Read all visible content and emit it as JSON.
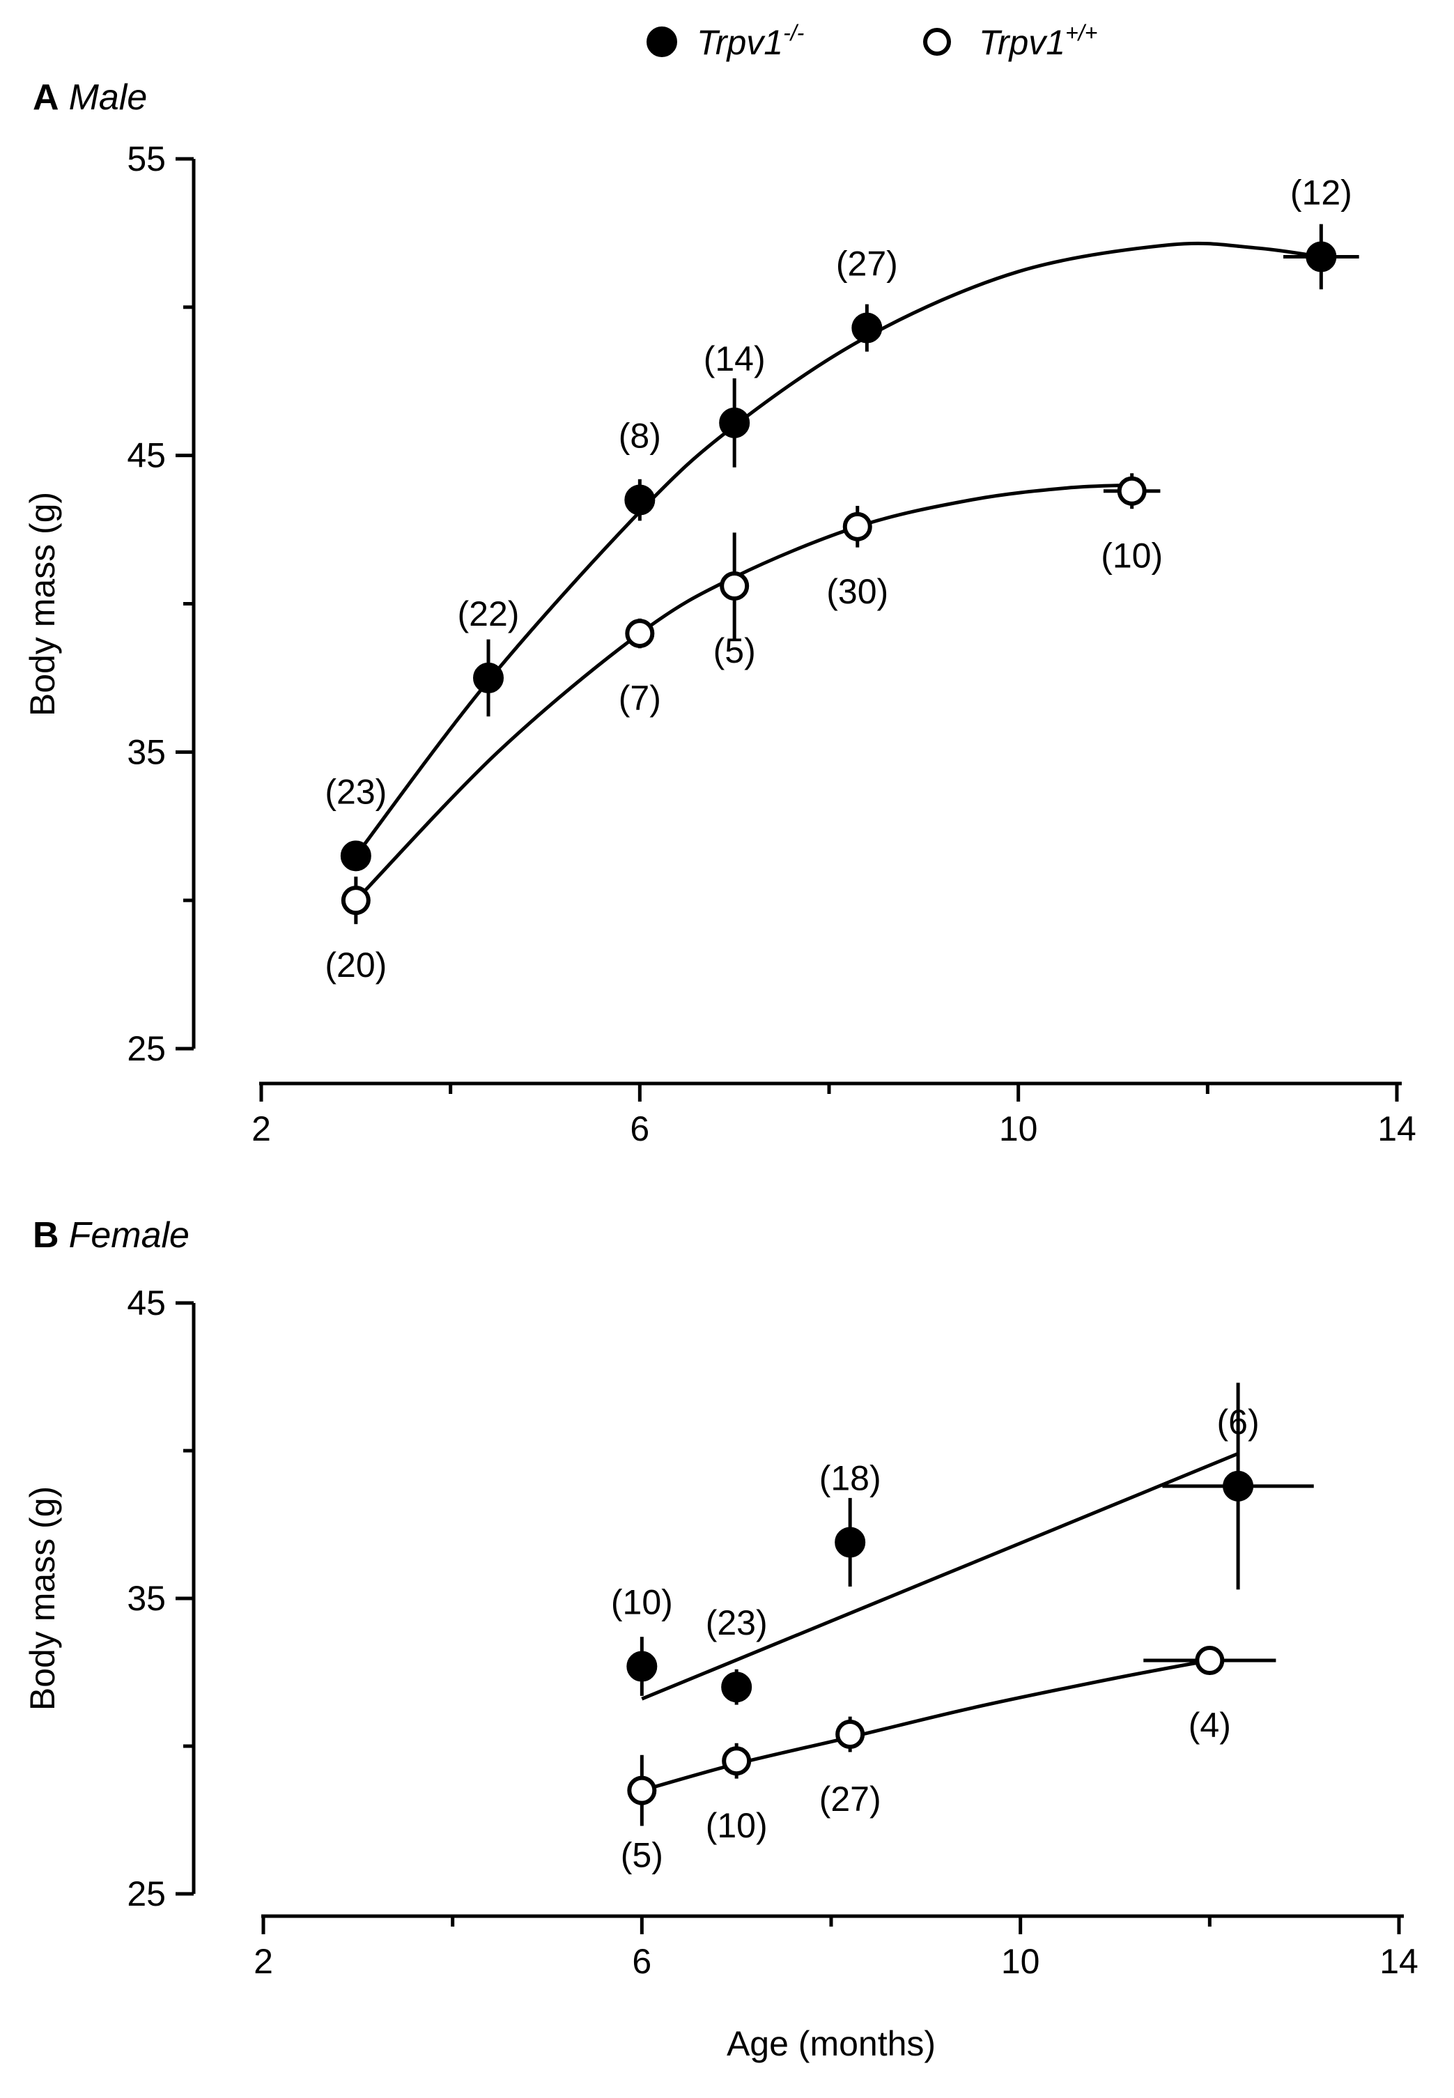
{
  "legend": {
    "entries": [
      {
        "name": "Trpv1",
        "sup": "-/-",
        "marker": "filled"
      },
      {
        "name": "Trpv1",
        "sup": "+/+",
        "marker": "open"
      }
    ]
  },
  "chart_data": [
    {
      "type": "scatter",
      "panel": {
        "letter": "A",
        "label": "Male"
      },
      "ylabel": "Body mass (g)",
      "xlabel": "",
      "xlim": [
        2,
        14
      ],
      "ylim": [
        25,
        55
      ],
      "xticks": [
        2,
        6,
        10,
        14
      ],
      "yticks": [
        25,
        35,
        45,
        55
      ],
      "series": [
        {
          "name": "Trpv1-/-",
          "marker": "filled",
          "points": [
            {
              "x": 3.0,
              "y": 31.5,
              "yerr": 0.5,
              "n": "(23)",
              "label_pos": "above"
            },
            {
              "x": 4.4,
              "y": 37.5,
              "yerr": 1.3,
              "n": "(22)",
              "label_pos": "above"
            },
            {
              "x": 6.0,
              "y": 43.5,
              "yerr": 0.7,
              "n": "(8)",
              "label_pos": "above"
            },
            {
              "x": 7.0,
              "y": 46.1,
              "yerr": 1.5,
              "n": "(14)",
              "label_pos": "above"
            },
            {
              "x": 8.4,
              "y": 49.3,
              "yerr": 0.8,
              "n": "(27)",
              "label_pos": "above"
            },
            {
              "x": 13.2,
              "y": 51.7,
              "yerr": 1.1,
              "xerr": 0.4,
              "n": "(12)",
              "label_pos": "above"
            }
          ],
          "fit": [
            [
              3.0,
              31.5
            ],
            [
              4.4,
              37.4
            ],
            [
              6.0,
              43.1
            ],
            [
              7.0,
              46.0
            ],
            [
              8.4,
              49.0
            ],
            [
              10.0,
              51.2
            ],
            [
              11.6,
              52.1
            ],
            [
              12.5,
              52.0
            ],
            [
              13.2,
              51.7
            ]
          ]
        },
        {
          "name": "Trpv1+/+",
          "marker": "open",
          "points": [
            {
              "x": 3.0,
              "y": 30.0,
              "yerr": 0.8,
              "n": "(20)",
              "label_pos": "below"
            },
            {
              "x": 6.0,
              "y": 39.0,
              "yerr": 0.5,
              "n": "(7)",
              "label_pos": "below"
            },
            {
              "x": 7.0,
              "y": 40.6,
              "yerr": 1.8,
              "n": "(5)",
              "label_pos": "below"
            },
            {
              "x": 8.3,
              "y": 42.6,
              "yerr": 0.7,
              "n": "(30)",
              "label_pos": "below"
            },
            {
              "x": 11.2,
              "y": 43.8,
              "yerr": 0.6,
              "xerr": 0.3,
              "n": "(10)",
              "label_pos": "below"
            }
          ],
          "fit": [
            [
              3.0,
              30.0
            ],
            [
              4.5,
              35.0
            ],
            [
              6.0,
              39.0
            ],
            [
              7.0,
              40.9
            ],
            [
              8.3,
              42.6
            ],
            [
              9.5,
              43.5
            ],
            [
              10.5,
              43.9
            ],
            [
              11.2,
              44.0
            ]
          ]
        }
      ]
    },
    {
      "type": "scatter",
      "panel": {
        "letter": "B",
        "label": "Female"
      },
      "ylabel": "Body mass (g)",
      "xlabel": "Age (months)",
      "xlim": [
        2,
        14
      ],
      "ylim": [
        25,
        45
      ],
      "xticks": [
        2,
        6,
        10,
        14
      ],
      "yticks": [
        25,
        35,
        45
      ],
      "series": [
        {
          "name": "Trpv1-/-",
          "marker": "filled",
          "points": [
            {
              "x": 6.0,
              "y": 32.7,
              "yerr": 1.0,
              "n": "(10)",
              "label_pos": "above"
            },
            {
              "x": 7.0,
              "y": 32.0,
              "yerr": 0.6,
              "n": "(23)",
              "label_pos": "above"
            },
            {
              "x": 8.2,
              "y": 36.9,
              "yerr": 1.5,
              "n": "(18)",
              "label_pos": "above"
            },
            {
              "x": 12.3,
              "y": 38.8,
              "yerr": 3.5,
              "xerr": 0.8,
              "n": "(6)",
              "label_pos": "above"
            }
          ],
          "fit": [
            [
              6.0,
              31.6
            ],
            [
              12.3,
              39.9
            ]
          ]
        },
        {
          "name": "Trpv1+/+",
          "marker": "open",
          "points": [
            {
              "x": 6.0,
              "y": 28.5,
              "yerr": 1.2,
              "n": "(5)",
              "label_pos": "below"
            },
            {
              "x": 7.0,
              "y": 29.5,
              "yerr": 0.6,
              "n": "(10)",
              "label_pos": "below"
            },
            {
              "x": 8.2,
              "y": 30.4,
              "yerr": 0.6,
              "n": "(27)",
              "label_pos": "below"
            },
            {
              "x": 12.0,
              "y": 32.9,
              "yerr": 0.2,
              "xerr": 0.7,
              "n": "(4)",
              "label_pos": "below"
            }
          ],
          "fit": [
            [
              6.0,
              28.5
            ],
            [
              7.0,
              29.4
            ],
            [
              8.2,
              30.3
            ],
            [
              9.5,
              31.3
            ],
            [
              11.0,
              32.3
            ],
            [
              12.0,
              32.9
            ]
          ]
        }
      ]
    }
  ]
}
